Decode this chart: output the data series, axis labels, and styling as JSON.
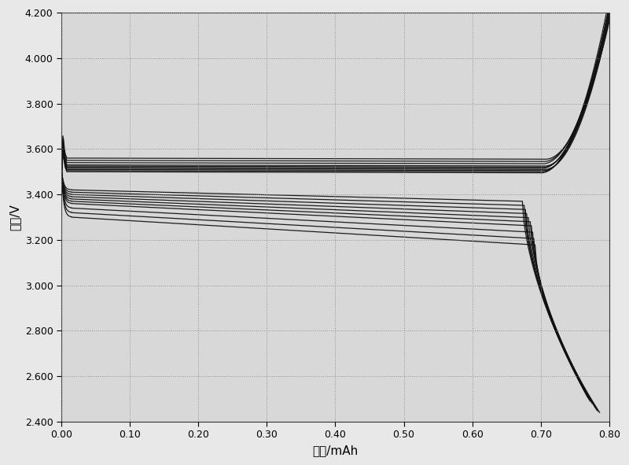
{
  "xlabel": "容量/mAh",
  "ylabel": "电压/V",
  "xlim": [
    0.0,
    0.8
  ],
  "ylim": [
    2.4,
    4.2
  ],
  "xticks": [
    0.0,
    0.1,
    0.2,
    0.3,
    0.4,
    0.5,
    0.6,
    0.7,
    0.8
  ],
  "yticks": [
    2.4,
    2.6,
    2.8,
    3.0,
    3.2,
    3.4,
    3.6,
    3.8,
    4.0,
    4.2
  ],
  "line_color": "#111111",
  "background_color": "#e8e8e8",
  "plot_bg_color": "#d8d8d8",
  "grid_color": "#888888",
  "xlabel_fontsize": 11,
  "ylabel_fontsize": 11,
  "tick_fontsize": 9,
  "charge_plateaus": [
    3.5,
    3.505,
    3.51,
    3.515,
    3.52,
    3.525,
    3.53,
    3.54,
    3.55,
    3.56
  ],
  "charge_capacities": [
    0.796,
    0.798,
    0.8,
    0.802,
    0.798,
    0.8,
    0.802,
    0.799,
    0.801,
    0.803
  ],
  "discharge_plateaus": [
    3.42,
    3.41,
    3.4,
    3.39,
    3.38,
    3.37,
    3.36,
    3.34,
    3.32,
    3.3
  ],
  "discharge_capacities": [
    0.765,
    0.768,
    0.77,
    0.772,
    0.775,
    0.778,
    0.78,
    0.782,
    0.784,
    0.786
  ],
  "discharge_ends": [
    2.53,
    2.51,
    2.5,
    2.49,
    2.48,
    2.47,
    2.46,
    2.45,
    2.445,
    2.44
  ]
}
